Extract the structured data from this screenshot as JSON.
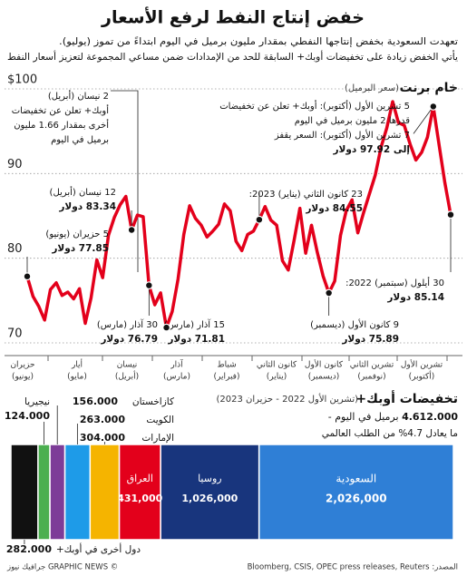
{
  "header": {
    "title": "خفض إنتاج النفط لرفع الأسعار",
    "subtitle": [
      "تعهدت السعودية بخفض إنتاجها النفطي بمقدار مليون برميل في اليوم ابتداءً من تموز (يوليو).",
      "يأتي الخفض زيادة على تخفيضات أوبك+ السابقة للحد من الإمدادات ضمن مساعي المجموعة لتعزيز أسعار النفط"
    ]
  },
  "chart_data": [
    {
      "type": "line",
      "title": "خام برنت",
      "subtitle": "(سعر البرميل)",
      "color": "#e3001b",
      "months": [
        [
          "حزيران",
          "(يونيو)"
        ],
        [
          "أيار",
          "(مايو)"
        ],
        [
          "نيسان",
          "(أبريل)"
        ],
        [
          "آذار",
          "(مارس)"
        ],
        [
          "شباط",
          "(فبراير)"
        ],
        [
          "كانون الثاني",
          "(يناير)"
        ],
        [
          "كانون الأول",
          "(ديسمبر)"
        ],
        [
          "تشرين الثاني",
          "(نوفمبر)"
        ],
        [
          "تشرين الأول",
          "(أكتوبر)"
        ]
      ],
      "values": [
        85.14,
        88.9,
        93.4,
        97.92,
        94.3,
        92.5,
        91.6,
        93.5,
        95.7,
        96.0,
        98.5,
        95.4,
        93.1,
        89.8,
        87.6,
        85.4,
        83.0,
        86.9,
        85.6,
        82.7,
        77.3,
        75.89,
        77.9,
        80.7,
        83.9,
        80.6,
        85.9,
        82.1,
        78.6,
        79.7,
        83.9,
        84.5,
        86.1,
        84.55,
        83.2,
        82.8,
        80.9,
        82.0,
        85.6,
        86.4,
        84.0,
        83.2,
        82.5,
        83.9,
        84.7,
        86.2,
        82.8,
        77.5,
        73.7,
        71.81,
        75.9,
        74.5,
        76.79,
        84.9,
        85.1,
        83.34,
        87.3,
        86.3,
        84.8,
        82.7,
        77.7,
        79.8,
        75.3,
        72.3,
        76.4,
        75.2,
        76.0,
        75.6,
        77.1,
        76.3,
        72.7,
        74.3,
        75.5,
        77.85
      ],
      "ylim": [
        68.5,
        101.5
      ],
      "yticks": [
        {
          "value": 100,
          "label": "$100"
        },
        90,
        80,
        70
      ],
      "grid": true,
      "annotations": [
        {
          "lines": [
            "5 حزيران (يونيو)"
          ],
          "value": 77.85,
          "value_label": "77.85 دولار"
        },
        {
          "lines": [
            "12 نيسان (أبريل)"
          ],
          "value": 83.34,
          "value_label": "83.34 دولار"
        },
        {
          "lines": [
            "30 آذار (مارس)"
          ],
          "value": 76.79,
          "value_label": "76.79 دولار"
        },
        {
          "lines": [
            "15 آذار (مارس)"
          ],
          "value": 71.81,
          "value_label": "71.81 دولار"
        },
        {
          "lines": [
            "23 كانون الثاني (يناير) 2023:"
          ],
          "value": 84.55,
          "value_label": "84.55 دولار"
        },
        {
          "lines": [
            "9 كانون الأول (ديسمبر)"
          ],
          "value": 75.89,
          "value_label": "75.89 دولار"
        },
        {
          "lines": [
            "30 أيلول (سبتمبر) 2022:"
          ],
          "value": 85.14,
          "value_label": "85.14 دولار"
        },
        {
          "lines": [
            "5 تشرين الأول (أكتوبر): أوبك+ تعلن عن تخفيضات",
            "قدرها 2 مليون برميل في اليوم",
            "7 تشرين الأول (أكتوبر): السعر يقفز"
          ],
          "value": 97.92,
          "value_label": "إلى 97.92 دولار"
        },
        {
          "lines": [
            "2 نيسان (أبريل)",
            "أوبك+ تعلن عن تخفيضات",
            "أخرى بمقدار 1.66 مليون",
            "برميل في اليوم"
          ]
        }
      ]
    },
    {
      "type": "stacked-bar",
      "title": "تخفيضات أوبك+",
      "subtitle": "(تشرين الأول 2022 - حزيران 2023)",
      "total": {
        "value": 4612000,
        "label": "4.612.000"
      },
      "total_unit": "برميل في اليوم -",
      "note": "ما يعادل 4.7% من الطلب العالمي",
      "categories": [
        "السعودية",
        "روسيا",
        "العراق",
        "الإمارات",
        "الكويت",
        "كازاخستان",
        "نيجيريا",
        "دول أخرى في أوبك+"
      ],
      "values": [
        2026000,
        1026000,
        431000,
        304000,
        263000,
        156000,
        124000,
        282000
      ],
      "value_labels": [
        "2,026,000",
        "1,026,000",
        "431,000",
        "304.000",
        "263.000",
        "156.000",
        "124.000",
        "282.000"
      ],
      "colors": [
        "#2f7fd6",
        "#18357d",
        "#e3001b",
        "#f5b400",
        "#1e9be8",
        "#7d3c98",
        "#4caf50",
        "#111111"
      ]
    }
  ],
  "footer": {
    "source": "المصدر: Bloomberg, CSIS, OPEC press releases, Reuters",
    "credit": "© GRAPHIC NEWS جرافيك نيوز"
  }
}
